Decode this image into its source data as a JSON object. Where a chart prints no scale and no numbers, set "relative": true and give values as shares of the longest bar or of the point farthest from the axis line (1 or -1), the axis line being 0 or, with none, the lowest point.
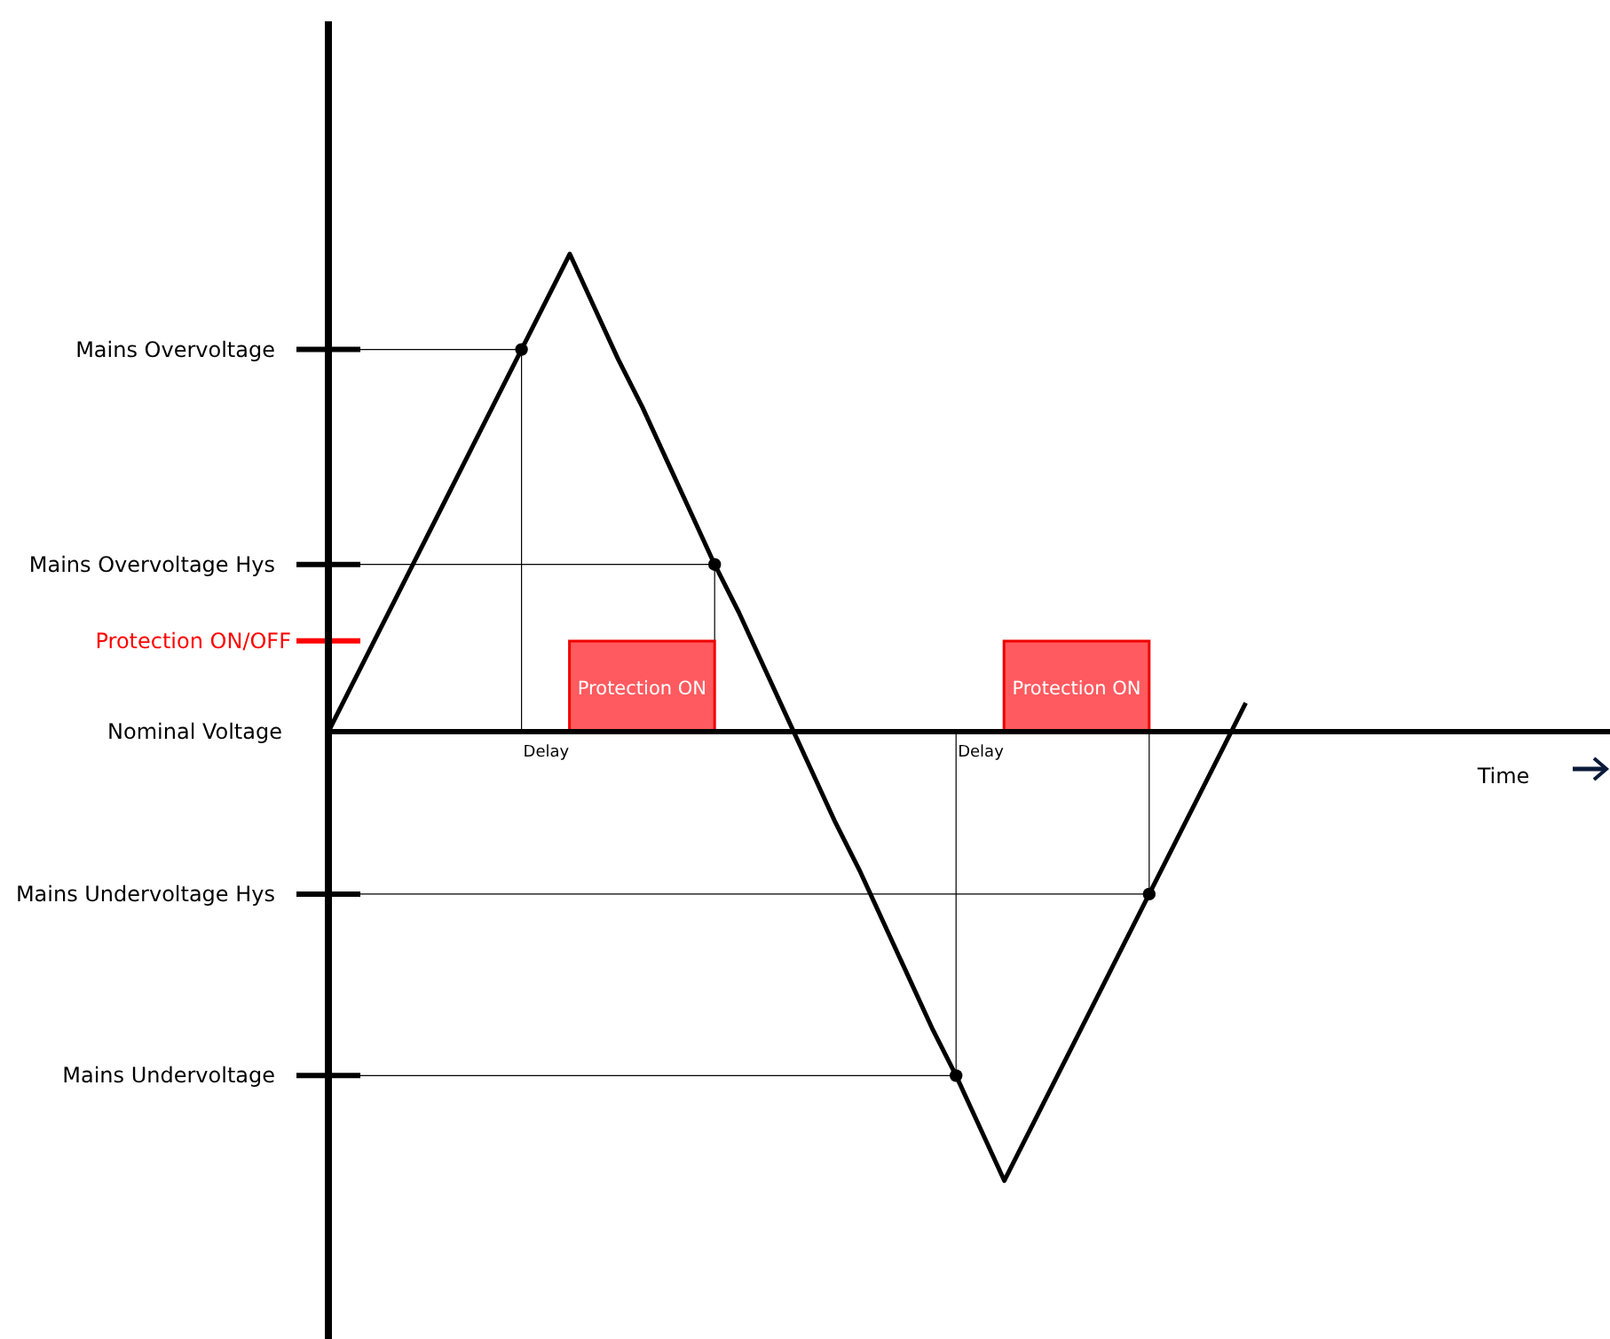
{
  "chart_data": {
    "type": "line",
    "relative": true,
    "categories": [
      null,
      null,
      null,
      null,
      null,
      null,
      null,
      null,
      null,
      null,
      null,
      null,
      null,
      null,
      null,
      null,
      null,
      null,
      null,
      null,
      null,
      null,
      null,
      null,
      null,
      null,
      null,
      null,
      null,
      null,
      null,
      null,
      null,
      null,
      null,
      null,
      null,
      null,
      null
    ],
    "series": [
      {
        "color": "#000000",
        "values": [
          0,
          0.1,
          0.2,
          0.3,
          0.4,
          0.5,
          0.6,
          0.7,
          0.8,
          0.9,
          1,
          0.89,
          0.78,
          0.68,
          0.57,
          0.46,
          0.35,
          0.25,
          0.14,
          0.03,
          -0.08,
          -0.19,
          -0.29,
          -0.4,
          -0.51,
          -0.62,
          -0.72,
          -0.83,
          -0.94,
          -0.84,
          -0.74,
          -0.64,
          -0.54,
          -0.44,
          -0.34,
          -0.24,
          -0.14,
          -0.04,
          0.06
        ]
      }
    ],
    "ref_lines": [
      {
        "axis": "y",
        "value": 0.8,
        "label": "Mains Overvoltage"
      },
      {
        "axis": "y",
        "value": 0.35,
        "label": "Mains Overvoltage Hys"
      },
      {
        "axis": "y",
        "value": 0,
        "label": "Nominal Voltage"
      },
      {
        "axis": "y",
        "value": -0.34,
        "label": "Mains Undervoltage Hys"
      },
      {
        "axis": "y",
        "value": -0.72,
        "label": "Mains Undervoltage"
      },
      {
        "axis": "y",
        "value": 0.19,
        "label": "Protection ON/OFF",
        "color": "#ff0000"
      }
    ],
    "annotations": [
      "Delay",
      "Protection ON",
      "Delay",
      "Protection ON",
      "Time"
    ]
  }
}
